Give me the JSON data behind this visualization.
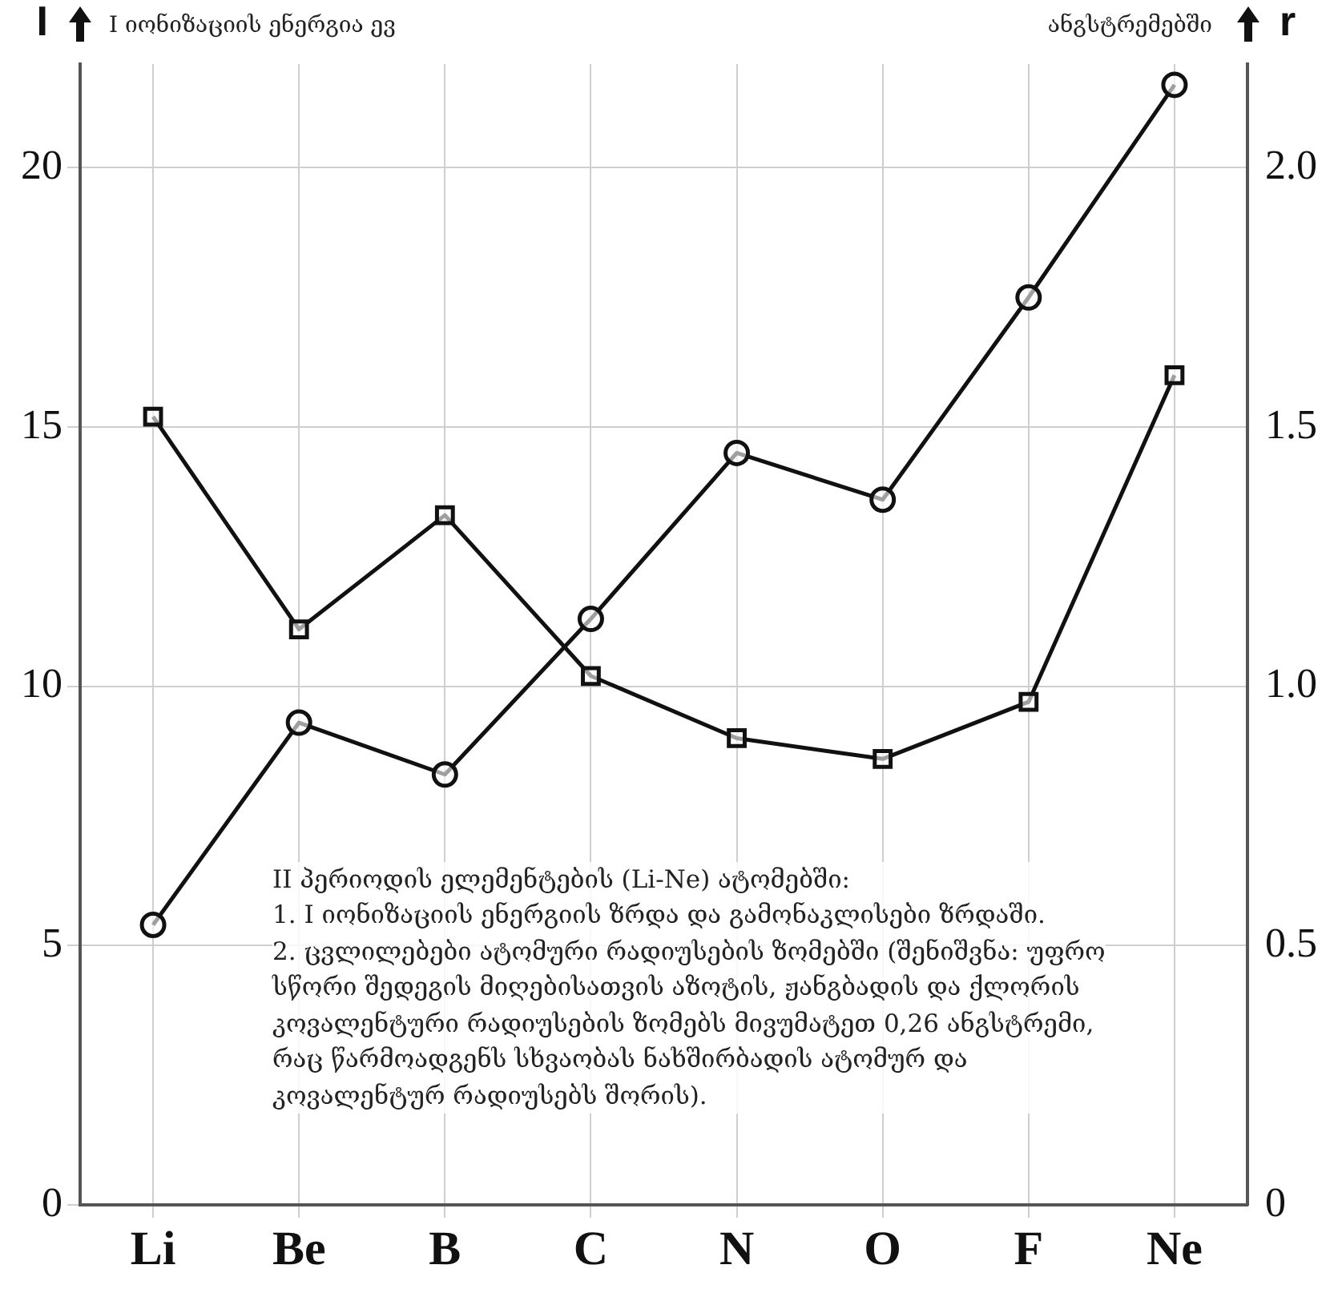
{
  "chart_data": {
    "type": "line",
    "categories": [
      "Li",
      "Be",
      "B",
      "C",
      "N",
      "O",
      "F",
      "Ne"
    ],
    "ylabel": "I",
    "y2label": "r",
    "series": [
      {
        "color": "#111111",
        "marker": "circle",
        "values": [
          5.4,
          9.3,
          8.3,
          11.3,
          14.5,
          13.6,
          17.5,
          21.6
        ]
      },
      {
        "color": "#111111",
        "marker": "square",
        "axis": "y2",
        "values": [
          1.52,
          1.11,
          1.33,
          1.02,
          0.9,
          0.86,
          0.97,
          1.6
        ]
      }
    ],
    "ylim": [
      0,
      22
    ],
    "yticks": [
      0,
      5,
      10,
      15,
      20
    ],
    "y2lim": [
      0,
      2.2
    ],
    "y2ticks": [
      0,
      0.5,
      {
        "value": 1,
        "label": "1.0"
      },
      1.5,
      {
        "value": 2,
        "label": "2.0"
      }
    ],
    "grid": true,
    "legend": false,
    "line_style": "solid",
    "annotations": [
      "I იონიზაციის ენერგია ევ",
      "ანგსტრემებში",
      "II პერიოდის ელემენტების (Li-Ne) ატომებში:\n1. I იონიზაციის ენერგიის ზრდა და გამონაკლისები ზრდაში.\n2. ცვლილებები ატომური რადიუსების ზომებში (შენიშვნა: უფრო სწორი შედეგის მიღებისათვის აზოტის, ჟანგბადის და ქლორის კოვალენტური რადიუსების ზომებს მივუმატეთ 0,26 ანგსტრემი, რაც წარმოადგენს სხვაობას ნახშირბადის ატომურ და კოვალენტურ რადიუსებს შორის)."
    ]
  }
}
